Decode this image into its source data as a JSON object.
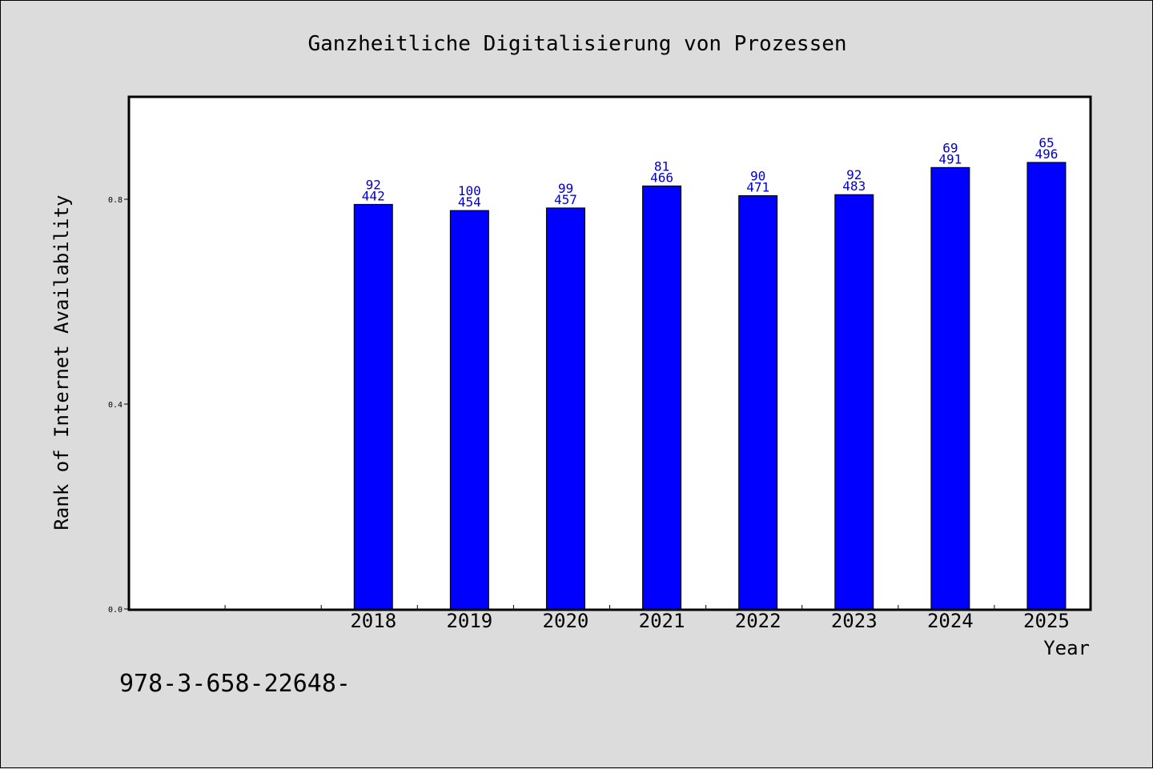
{
  "chart_data": {
    "type": "bar",
    "title": "Ganzheitliche Digitalisierung von Prozessen",
    "xlabel": "Year",
    "ylabel": "Rank of Internet Availability",
    "categories": [
      "2018",
      "2019",
      "2020",
      "2021",
      "2022",
      "2023",
      "2024",
      "2025"
    ],
    "values": [
      0.79,
      0.778,
      0.783,
      0.826,
      0.807,
      0.809,
      0.862,
      0.872
    ],
    "label_top": [
      "92",
      "100",
      "99",
      "81",
      "90",
      "92",
      "69",
      "65"
    ],
    "label_bottom": [
      "442",
      "454",
      "457",
      "466",
      "471",
      "483",
      "491",
      "496"
    ],
    "yticks": [
      "0.0",
      "0.4",
      "0.8"
    ],
    "ylim": [
      0,
      1.0
    ],
    "grid": false,
    "bar_color": "#0000ff",
    "label_color": "#0000cc"
  },
  "footer_text": "978-3-658-22648-"
}
